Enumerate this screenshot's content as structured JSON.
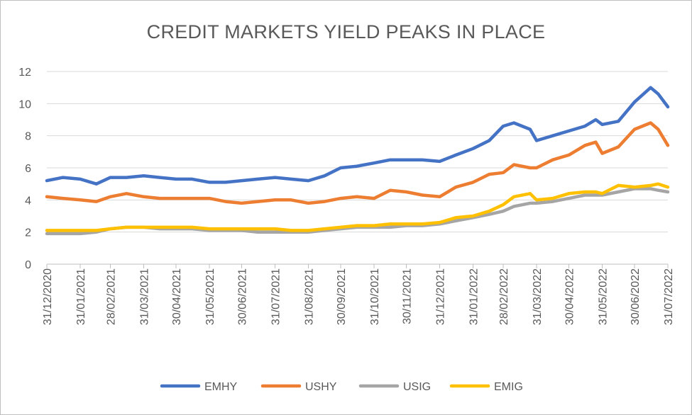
{
  "chart_data": {
    "type": "line",
    "title": "CREDIT MARKETS YIELD PEAKS IN PLACE",
    "xlabel": "",
    "ylabel": "",
    "ylim": [
      0,
      12
    ],
    "yticks": [
      "0",
      "2",
      "4",
      "6",
      "8",
      "10",
      "12"
    ],
    "grid": true,
    "legend_position": "bottom",
    "x_tick_labels": [
      "31/12/2020",
      "31/01/2021",
      "28/02/2021",
      "31/03/2021",
      "30/04/2021",
      "31/05/2021",
      "30/06/2021",
      "31/07/2021",
      "31/08/2021",
      "30/09/2021",
      "31/10/2021",
      "30/11/2021",
      "31/12/2021",
      "31/01/2022",
      "28/02/2022",
      "31/03/2022",
      "30/04/2022",
      "31/05/2022",
      "30/06/2022",
      "31/07/2022"
    ],
    "series": [
      {
        "name": "EMHY",
        "color": "#4472C4",
        "points": [
          [
            "31/12/2020",
            5.2
          ],
          [
            "15/01/2021",
            5.4
          ],
          [
            "31/01/2021",
            5.3
          ],
          [
            "15/02/2021",
            5.0
          ],
          [
            "28/02/2021",
            5.4
          ],
          [
            "15/03/2021",
            5.4
          ],
          [
            "31/03/2021",
            5.5
          ],
          [
            "15/04/2021",
            5.4
          ],
          [
            "30/04/2021",
            5.3
          ],
          [
            "15/05/2021",
            5.3
          ],
          [
            "31/05/2021",
            5.1
          ],
          [
            "15/06/2021",
            5.1
          ],
          [
            "30/06/2021",
            5.2
          ],
          [
            "15/07/2021",
            5.3
          ],
          [
            "31/07/2021",
            5.4
          ],
          [
            "15/08/2021",
            5.3
          ],
          [
            "31/08/2021",
            5.2
          ],
          [
            "15/09/2021",
            5.5
          ],
          [
            "30/09/2021",
            6.0
          ],
          [
            "15/10/2021",
            6.1
          ],
          [
            "31/10/2021",
            6.3
          ],
          [
            "15/11/2021",
            6.5
          ],
          [
            "30/11/2021",
            6.5
          ],
          [
            "15/12/2021",
            6.5
          ],
          [
            "31/12/2021",
            6.4
          ],
          [
            "15/01/2022",
            6.8
          ],
          [
            "31/01/2022",
            7.2
          ],
          [
            "15/02/2022",
            7.7
          ],
          [
            "28/02/2022",
            8.6
          ],
          [
            "10/03/2022",
            8.8
          ],
          [
            "25/03/2022",
            8.4
          ],
          [
            "31/03/2022",
            7.7
          ],
          [
            "15/04/2022",
            8.0
          ],
          [
            "30/04/2022",
            8.3
          ],
          [
            "15/05/2022",
            8.6
          ],
          [
            "25/05/2022",
            9.0
          ],
          [
            "31/05/2022",
            8.7
          ],
          [
            "15/06/2022",
            8.9
          ],
          [
            "30/06/2022",
            10.1
          ],
          [
            "15/07/2022",
            11.0
          ],
          [
            "22/07/2022",
            10.6
          ],
          [
            "31/07/2022",
            9.8
          ]
        ]
      },
      {
        "name": "USHY",
        "color": "#ED7D31",
        "points": [
          [
            "31/12/2020",
            4.2
          ],
          [
            "15/01/2021",
            4.1
          ],
          [
            "31/01/2021",
            4.0
          ],
          [
            "15/02/2021",
            3.9
          ],
          [
            "28/02/2021",
            4.2
          ],
          [
            "15/03/2021",
            4.4
          ],
          [
            "31/03/2021",
            4.2
          ],
          [
            "15/04/2021",
            4.1
          ],
          [
            "30/04/2021",
            4.1
          ],
          [
            "15/05/2021",
            4.1
          ],
          [
            "31/05/2021",
            4.1
          ],
          [
            "15/06/2021",
            3.9
          ],
          [
            "30/06/2021",
            3.8
          ],
          [
            "15/07/2021",
            3.9
          ],
          [
            "31/07/2021",
            4.0
          ],
          [
            "15/08/2021",
            4.0
          ],
          [
            "31/08/2021",
            3.8
          ],
          [
            "15/09/2021",
            3.9
          ],
          [
            "30/09/2021",
            4.1
          ],
          [
            "15/10/2021",
            4.2
          ],
          [
            "31/10/2021",
            4.1
          ],
          [
            "15/11/2021",
            4.6
          ],
          [
            "30/11/2021",
            4.5
          ],
          [
            "15/12/2021",
            4.3
          ],
          [
            "31/12/2021",
            4.2
          ],
          [
            "15/01/2022",
            4.8
          ],
          [
            "31/01/2022",
            5.1
          ],
          [
            "15/02/2022",
            5.6
          ],
          [
            "28/02/2022",
            5.7
          ],
          [
            "10/03/2022",
            6.2
          ],
          [
            "25/03/2022",
            6.0
          ],
          [
            "31/03/2022",
            6.0
          ],
          [
            "15/04/2022",
            6.5
          ],
          [
            "30/04/2022",
            6.8
          ],
          [
            "15/05/2022",
            7.4
          ],
          [
            "25/05/2022",
            7.6
          ],
          [
            "31/05/2022",
            6.9
          ],
          [
            "15/06/2022",
            7.3
          ],
          [
            "30/06/2022",
            8.4
          ],
          [
            "15/07/2022",
            8.8
          ],
          [
            "22/07/2022",
            8.4
          ],
          [
            "31/07/2022",
            7.4
          ]
        ]
      },
      {
        "name": "USIG",
        "color": "#A5A5A5",
        "points": [
          [
            "31/12/2020",
            1.9
          ],
          [
            "15/01/2021",
            1.9
          ],
          [
            "31/01/2021",
            1.9
          ],
          [
            "15/02/2021",
            2.0
          ],
          [
            "28/02/2021",
            2.2
          ],
          [
            "15/03/2021",
            2.3
          ],
          [
            "31/03/2021",
            2.3
          ],
          [
            "15/04/2021",
            2.2
          ],
          [
            "30/04/2021",
            2.2
          ],
          [
            "15/05/2021",
            2.2
          ],
          [
            "31/05/2021",
            2.1
          ],
          [
            "15/06/2021",
            2.1
          ],
          [
            "30/06/2021",
            2.1
          ],
          [
            "15/07/2021",
            2.0
          ],
          [
            "31/07/2021",
            2.0
          ],
          [
            "15/08/2021",
            2.0
          ],
          [
            "31/08/2021",
            2.0
          ],
          [
            "15/09/2021",
            2.1
          ],
          [
            "30/09/2021",
            2.2
          ],
          [
            "15/10/2021",
            2.3
          ],
          [
            "31/10/2021",
            2.3
          ],
          [
            "15/11/2021",
            2.3
          ],
          [
            "30/11/2021",
            2.4
          ],
          [
            "15/12/2021",
            2.4
          ],
          [
            "31/12/2021",
            2.5
          ],
          [
            "15/01/2022",
            2.7
          ],
          [
            "31/01/2022",
            2.9
          ],
          [
            "15/02/2022",
            3.1
          ],
          [
            "28/02/2022",
            3.3
          ],
          [
            "10/03/2022",
            3.6
          ],
          [
            "25/03/2022",
            3.8
          ],
          [
            "31/03/2022",
            3.8
          ],
          [
            "15/04/2022",
            3.9
          ],
          [
            "30/04/2022",
            4.1
          ],
          [
            "15/05/2022",
            4.3
          ],
          [
            "25/05/2022",
            4.3
          ],
          [
            "31/05/2022",
            4.3
          ],
          [
            "15/06/2022",
            4.5
          ],
          [
            "30/06/2022",
            4.7
          ],
          [
            "15/07/2022",
            4.7
          ],
          [
            "22/07/2022",
            4.6
          ],
          [
            "31/07/2022",
            4.5
          ]
        ]
      },
      {
        "name": "EMIG",
        "color": "#FFC000",
        "points": [
          [
            "31/12/2020",
            2.1
          ],
          [
            "15/01/2021",
            2.1
          ],
          [
            "31/01/2021",
            2.1
          ],
          [
            "15/02/2021",
            2.1
          ],
          [
            "28/02/2021",
            2.2
          ],
          [
            "15/03/2021",
            2.3
          ],
          [
            "31/03/2021",
            2.3
          ],
          [
            "15/04/2021",
            2.3
          ],
          [
            "30/04/2021",
            2.3
          ],
          [
            "15/05/2021",
            2.3
          ],
          [
            "31/05/2021",
            2.2
          ],
          [
            "15/06/2021",
            2.2
          ],
          [
            "30/06/2021",
            2.2
          ],
          [
            "15/07/2021",
            2.2
          ],
          [
            "31/07/2021",
            2.2
          ],
          [
            "15/08/2021",
            2.1
          ],
          [
            "31/08/2021",
            2.1
          ],
          [
            "15/09/2021",
            2.2
          ],
          [
            "30/09/2021",
            2.3
          ],
          [
            "15/10/2021",
            2.4
          ],
          [
            "31/10/2021",
            2.4
          ],
          [
            "15/11/2021",
            2.5
          ],
          [
            "30/11/2021",
            2.5
          ],
          [
            "15/12/2021",
            2.5
          ],
          [
            "31/12/2021",
            2.6
          ],
          [
            "15/01/2022",
            2.9
          ],
          [
            "31/01/2022",
            3.0
          ],
          [
            "15/02/2022",
            3.3
          ],
          [
            "28/02/2022",
            3.7
          ],
          [
            "10/03/2022",
            4.2
          ],
          [
            "25/03/2022",
            4.4
          ],
          [
            "31/03/2022",
            4.0
          ],
          [
            "15/04/2022",
            4.1
          ],
          [
            "30/04/2022",
            4.4
          ],
          [
            "15/05/2022",
            4.5
          ],
          [
            "25/05/2022",
            4.5
          ],
          [
            "31/05/2022",
            4.4
          ],
          [
            "15/06/2022",
            4.9
          ],
          [
            "30/06/2022",
            4.8
          ],
          [
            "15/07/2022",
            4.9
          ],
          [
            "22/07/2022",
            5.0
          ],
          [
            "31/07/2022",
            4.8
          ]
        ]
      }
    ]
  }
}
